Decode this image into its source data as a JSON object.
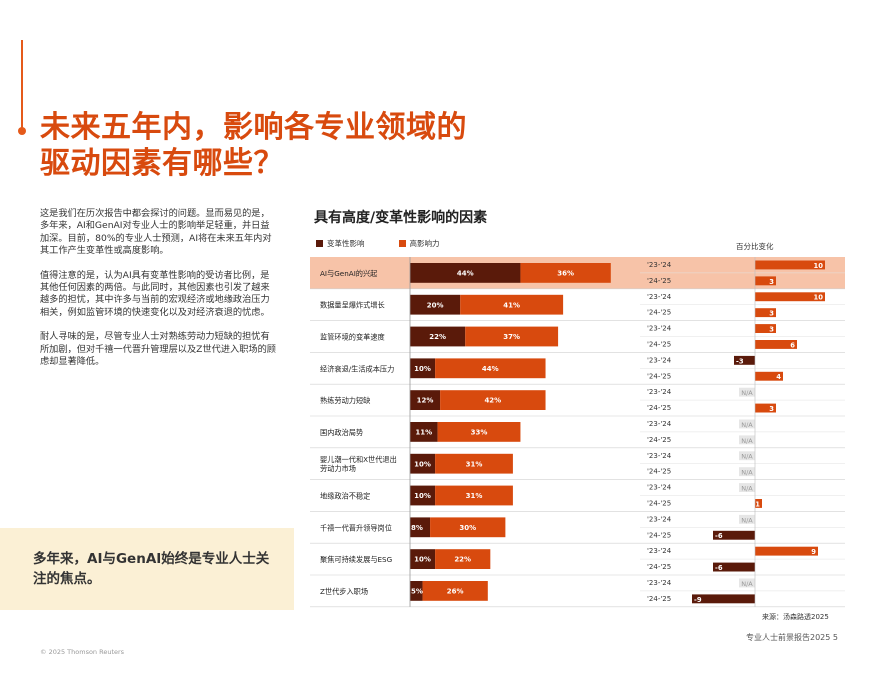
{
  "title_lines": [
    "未来五年内，影响各专业领域的",
    "驱动因素有哪些？"
  ],
  "body_paragraphs": [
    "这是我们在历次报告中都会探讨的问题。显而易见的是，多年来，AI和GenAI对专业人士的影响举足轻重，并日益加深。目前，80%的专业人士预测，AI将在未来五年内对其工作产生变革性或高度影响。",
    "值得注意的是，认为AI具有变革性影响的受访者比例，是其他任何因素的两倍。与此同时，其他因素也引发了越来越多的担忧，其中许多与当前的宏观经济或地缘政治压力相关，例如监管环境的快速变化以及对经济衰退的忧虑。",
    "耐人寻味的是，尽管专业人士对熟练劳动力短缺的担忧有所加剧，但对千禧一代晋升管理层以及Z世代进入职场的顾虑却显著降低。"
  ],
  "callout": "多年来，AI与GenAI始终是专业人士关注的焦点。",
  "footer_left": "© 2025 Thomson Reuters",
  "footer_right": "专业人士前景报告2025  5",
  "chart_data": {
    "type": "bar",
    "title": "具有高度/变革性影响的因素",
    "legend": [
      "变革性影响",
      "高影响力"
    ],
    "right_header": "百分比变化",
    "source": "来源：汤森路透2025",
    "colors": {
      "transformative": "#5a1a0a",
      "high": "#d84a0e",
      "highlight": "#f7c3a8",
      "na": "#e6e6e6"
    },
    "periods": [
      "'23-'24",
      "'24-'25"
    ],
    "categories": [
      "AI与GenAI的兴起",
      "数据量呈爆炸式增长",
      "监管环境的变革速度",
      "经济衰退/生活成本压力",
      "熟练劳动力短缺",
      "国内政治局势",
      "婴儿潮一代和X世代退出劳动力市场",
      "地缘政治不稳定",
      "千禧一代晋升领导岗位",
      "聚焦可持续发展与ESG",
      "Z世代步入职场"
    ],
    "category_lines": [
      [
        "AI与GenAI的兴起"
      ],
      [
        "数据量呈爆炸式增长"
      ],
      [
        "监管环境的变革速度"
      ],
      [
        "经济衰退/生活成本压力"
      ],
      [
        "熟练劳动力短缺"
      ],
      [
        "国内政治局势"
      ],
      [
        "婴儿潮一代和X世代退出",
        "劳动力市场"
      ],
      [
        "地缘政治不稳定"
      ],
      [
        "千禧一代晋升领导岗位"
      ],
      [
        "聚焦可持续发展与ESG"
      ],
      [
        "Z世代步入职场"
      ]
    ],
    "series": [
      {
        "name": "变革性影响",
        "values": [
          44,
          20,
          22,
          10,
          12,
          11,
          10,
          10,
          8,
          10,
          5
        ]
      },
      {
        "name": "高影响力",
        "values": [
          36,
          41,
          37,
          44,
          42,
          33,
          31,
          31,
          30,
          22,
          26
        ]
      }
    ],
    "change": [
      [
        10,
        3
      ],
      [
        10,
        3
      ],
      [
        3,
        6
      ],
      [
        -3,
        4
      ],
      [
        "N/A",
        3
      ],
      [
        "N/A",
        "N/A"
      ],
      [
        "N/A",
        "N/A"
      ],
      [
        "N/A",
        1
      ],
      [
        "N/A",
        -6
      ],
      [
        9,
        -6
      ],
      [
        "N/A",
        -9
      ]
    ]
  }
}
